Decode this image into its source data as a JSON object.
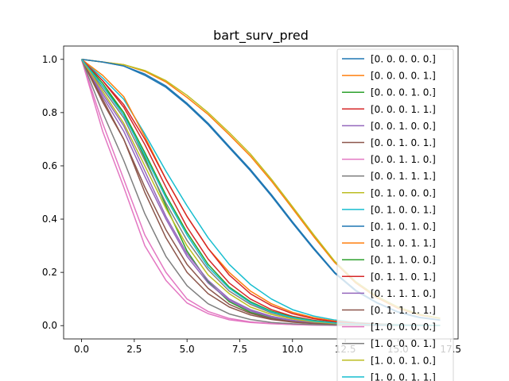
{
  "chart_data": {
    "type": "line",
    "title": "bart_surv_pred",
    "xlabel": "",
    "ylabel": "",
    "xlim": [
      -0.85,
      17.85
    ],
    "ylim": [
      -0.05,
      1.05
    ],
    "xticks": [
      0.0,
      2.5,
      5.0,
      7.5,
      10.0,
      12.5,
      15.0,
      17.5
    ],
    "xtick_labels": [
      "0.0",
      "2.5",
      "5.0",
      "7.5",
      "10.0",
      "12.5",
      "15.0",
      "17.5"
    ],
    "yticks": [
      0.0,
      0.2,
      0.4,
      0.6,
      0.8,
      1.0
    ],
    "ytick_labels": [
      "0.0",
      "0.2",
      "0.4",
      "0.6",
      "0.8",
      "1.0"
    ],
    "grid": false,
    "legend_position": "right",
    "x": [
      0,
      1,
      2,
      3,
      4,
      5,
      6,
      7,
      8,
      9,
      10,
      11,
      12,
      13,
      14,
      15,
      16,
      17
    ],
    "series": [
      {
        "name": "[0. 0. 0. 0. 0.]",
        "color": "#1f77b4",
        "values": [
          1.0,
          0.99,
          0.975,
          0.94,
          0.895,
          0.83,
          0.755,
          0.668,
          0.582,
          0.487,
          0.385,
          0.288,
          0.197,
          0.13,
          0.085,
          0.05,
          0.03,
          0.02
        ]
      },
      {
        "name": "[0. 0. 0. 0. 1.]",
        "color": "#ff7f0e",
        "values": [
          1.0,
          0.99,
          0.98,
          0.955,
          0.915,
          0.857,
          0.793,
          0.717,
          0.637,
          0.543,
          0.44,
          0.335,
          0.237,
          0.16,
          0.105,
          0.065,
          0.04,
          0.027
        ]
      },
      {
        "name": "[0. 0. 0. 1. 0.]",
        "color": "#2ca02c",
        "values": [
          1.0,
          0.9,
          0.8,
          0.63,
          0.45,
          0.28,
          0.165,
          0.09,
          0.05,
          0.03,
          0.017,
          0.01,
          0.006,
          0.004,
          0.002,
          0.001,
          0.001,
          0.0
        ]
      },
      {
        "name": "[0. 0. 0. 1. 1.]",
        "color": "#d62728",
        "values": [
          1.0,
          0.92,
          0.82,
          0.68,
          0.52,
          0.37,
          0.25,
          0.16,
          0.1,
          0.06,
          0.035,
          0.02,
          0.012,
          0.007,
          0.004,
          0.002,
          0.001,
          0.001
        ]
      },
      {
        "name": "[0. 0. 1. 0. 0.]",
        "color": "#9467bd",
        "values": [
          1.0,
          0.87,
          0.75,
          0.58,
          0.41,
          0.27,
          0.17,
          0.1,
          0.06,
          0.035,
          0.02,
          0.012,
          0.007,
          0.004,
          0.002,
          0.001,
          0.001,
          0.0
        ]
      },
      {
        "name": "[0. 0. 1. 0. 1.]",
        "color": "#8c564b",
        "values": [
          1.0,
          0.84,
          0.7,
          0.5,
          0.33,
          0.2,
          0.12,
          0.07,
          0.04,
          0.023,
          0.013,
          0.008,
          0.005,
          0.003,
          0.002,
          0.001,
          0.0,
          0.0
        ]
      },
      {
        "name": "[0. 0. 1. 1. 0.]",
        "color": "#e377c2",
        "values": [
          1.0,
          0.73,
          0.52,
          0.3,
          0.17,
          0.085,
          0.045,
          0.022,
          0.012,
          0.007,
          0.004,
          0.002,
          0.001,
          0.001,
          0.0,
          0.0,
          0.0,
          0.0
        ]
      },
      {
        "name": "[0. 0. 1. 1. 1.]",
        "color": "#7f7f7f",
        "values": [
          1.0,
          0.89,
          0.78,
          0.62,
          0.46,
          0.32,
          0.21,
          0.13,
          0.08,
          0.048,
          0.028,
          0.016,
          0.01,
          0.006,
          0.003,
          0.002,
          0.001,
          0.001
        ]
      },
      {
        "name": "[0. 1. 0. 0. 0.]",
        "color": "#bcbd22",
        "values": [
          1.0,
          0.99,
          0.98,
          0.958,
          0.92,
          0.865,
          0.8,
          0.725,
          0.645,
          0.55,
          0.447,
          0.342,
          0.242,
          0.165,
          0.11,
          0.07,
          0.043,
          0.028
        ]
      },
      {
        "name": "[0. 1. 0. 0. 1.]",
        "color": "#17becf",
        "values": [
          1.0,
          0.93,
          0.85,
          0.72,
          0.58,
          0.45,
          0.33,
          0.23,
          0.155,
          0.1,
          0.06,
          0.036,
          0.021,
          0.012,
          0.007,
          0.004,
          0.002,
          0.001
        ]
      },
      {
        "name": "[0. 1. 0. 1. 0.]",
        "color": "#1f77b4",
        "values": [
          1.0,
          0.99,
          0.975,
          0.945,
          0.9,
          0.835,
          0.76,
          0.673,
          0.587,
          0.492,
          0.39,
          0.292,
          0.2,
          0.133,
          0.087,
          0.052,
          0.032,
          0.021
        ]
      },
      {
        "name": "[0. 1. 0. 1. 1.]",
        "color": "#ff7f0e",
        "values": [
          1.0,
          0.94,
          0.86,
          0.71,
          0.55,
          0.41,
          0.29,
          0.2,
          0.13,
          0.082,
          0.05,
          0.03,
          0.017,
          0.01,
          0.006,
          0.003,
          0.002,
          0.001
        ]
      },
      {
        "name": "[0. 1. 1. 0. 0.]",
        "color": "#2ca02c",
        "values": [
          1.0,
          0.91,
          0.8,
          0.65,
          0.49,
          0.35,
          0.23,
          0.145,
          0.09,
          0.054,
          0.032,
          0.019,
          0.011,
          0.006,
          0.004,
          0.002,
          0.001,
          0.001
        ]
      },
      {
        "name": "[0. 1. 1. 0. 1.]",
        "color": "#d62728",
        "values": [
          1.0,
          0.92,
          0.83,
          0.7,
          0.55,
          0.41,
          0.29,
          0.19,
          0.12,
          0.075,
          0.045,
          0.026,
          0.015,
          0.009,
          0.005,
          0.003,
          0.002,
          0.001
        ]
      },
      {
        "name": "[0. 1. 1. 1. 0.]",
        "color": "#9467bd",
        "values": [
          1.0,
          0.86,
          0.73,
          0.56,
          0.4,
          0.26,
          0.16,
          0.095,
          0.055,
          0.032,
          0.018,
          0.01,
          0.006,
          0.003,
          0.002,
          0.001,
          0.0,
          0.0
        ]
      },
      {
        "name": "[0. 1. 1. 1. 1.]",
        "color": "#8c564b",
        "values": [
          1.0,
          0.85,
          0.7,
          0.52,
          0.36,
          0.23,
          0.14,
          0.08,
          0.046,
          0.026,
          0.015,
          0.008,
          0.005,
          0.003,
          0.002,
          0.001,
          0.0,
          0.0
        ]
      },
      {
        "name": "[1. 0. 0. 0. 0.]",
        "color": "#e377c2",
        "values": [
          1.0,
          0.76,
          0.55,
          0.34,
          0.2,
          0.1,
          0.053,
          0.027,
          0.014,
          0.008,
          0.004,
          0.002,
          0.001,
          0.001,
          0.0,
          0.0,
          0.0,
          0.0
        ]
      },
      {
        "name": "[1. 0. 0. 0. 1.]",
        "color": "#7f7f7f",
        "values": [
          1.0,
          0.8,
          0.62,
          0.42,
          0.26,
          0.15,
          0.082,
          0.044,
          0.023,
          0.012,
          0.007,
          0.004,
          0.002,
          0.001,
          0.001,
          0.0,
          0.0,
          0.0
        ]
      },
      {
        "name": "[1. 0. 0. 1. 0.]",
        "color": "#bcbd22",
        "values": [
          1.0,
          0.88,
          0.76,
          0.6,
          0.44,
          0.3,
          0.19,
          0.12,
          0.07,
          0.042,
          0.025,
          0.014,
          0.008,
          0.005,
          0.003,
          0.002,
          0.001,
          0.001
        ]
      },
      {
        "name": "[1. 0. 0. 1. 1.]",
        "color": "#17becf",
        "values": [
          1.0,
          0.9,
          0.79,
          0.64,
          0.48,
          0.34,
          0.22,
          0.14,
          0.086,
          0.051,
          0.03,
          0.017,
          0.01,
          0.006,
          0.003,
          0.002,
          0.001,
          0.001
        ]
      }
    ]
  }
}
